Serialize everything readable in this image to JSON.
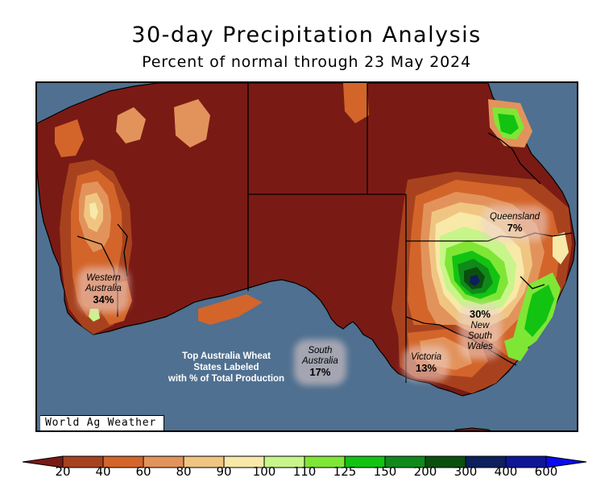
{
  "title": "30-day Precipitation Analysis",
  "subtitle": "Percent of normal through 23 May 2024",
  "credit": "World Ag Weather",
  "note": {
    "line1": "Top Australia Wheat",
    "line2": "States Labeled",
    "line3": "with % of Total Production"
  },
  "states": [
    {
      "name_lines": [
        "Western",
        "Australia"
      ],
      "pct": "34%"
    },
    {
      "name_lines": [
        "South",
        "Australia"
      ],
      "pct": "17%"
    },
    {
      "name_lines": [
        "Victoria"
      ],
      "pct": "13%"
    },
    {
      "name_lines": [
        "New",
        "South",
        "Wales"
      ],
      "pct": "30%"
    },
    {
      "name_lines": [
        "Queensland"
      ],
      "pct": "7%"
    }
  ],
  "legend": {
    "ticks": [
      "20",
      "40",
      "60",
      "80",
      "90",
      "100",
      "110",
      "125",
      "150",
      "200",
      "300",
      "400",
      "600"
    ],
    "colors": [
      "#7a1a14",
      "#a8421e",
      "#d3652a",
      "#e2935b",
      "#f0c582",
      "#f8e9a8",
      "#c8f58a",
      "#7fe636",
      "#12c312",
      "#0f8a1a",
      "#0b4f0e",
      "#0d1f5c",
      "#0e1696",
      "#0a0aef"
    ]
  },
  "colors": {
    "ocean": "#4f7090",
    "dry_base": "#7a1a14"
  }
}
